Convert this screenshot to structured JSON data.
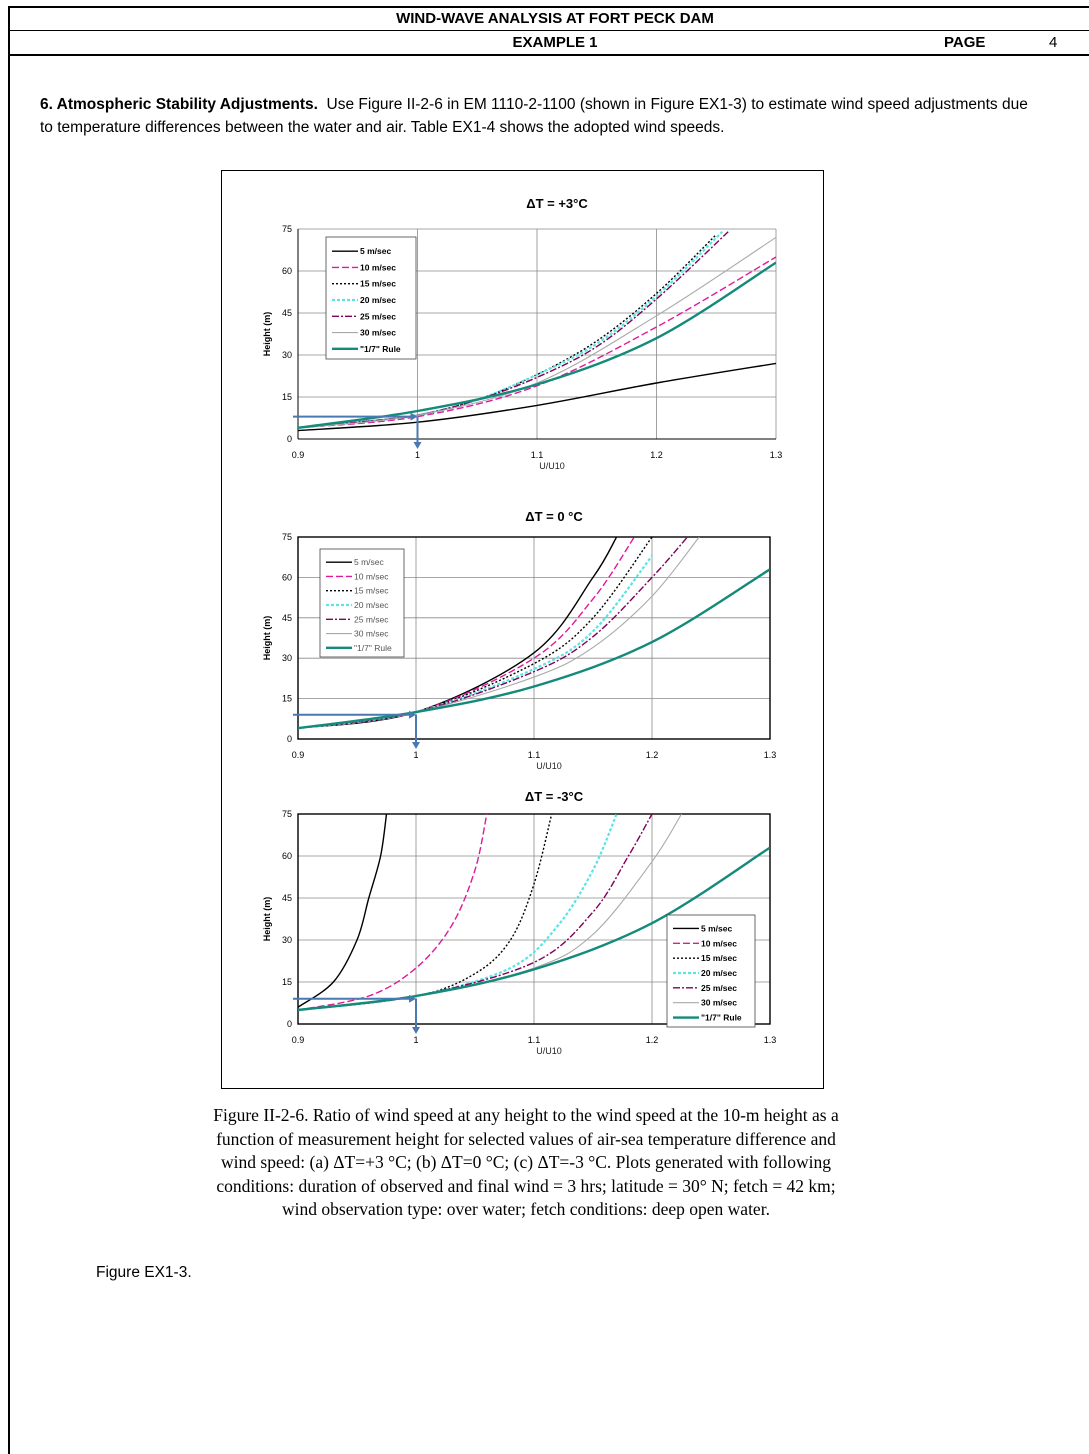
{
  "header": {
    "title": "WIND-WAVE ANALYSIS AT FORT PECK DAM",
    "subtitle": "EXAMPLE 1",
    "page_label": "PAGE",
    "page_number": "4"
  },
  "section": {
    "heading": "6. Atmospheric Stability Adjustments.",
    "body": "Use Figure II-2-6 in EM 1110-2-1100 (shown in Figure EX1-3)  to estimate wind speed adjustments due to temperature differences between the water and air. Table EX1-4 shows the adopted wind speeds."
  },
  "caption": "Figure II-2-6.  Ratio of wind speed at any height to the wind speed at the 10-m height as a function of measurement height for selected values of air-sea temperature difference and wind speed: (a) ΔT=+3 °C; (b) ΔT=0 °C; (c) ΔT=-3 °C.  Plots generated with following conditions: duration of observed and final wind = 3 hrs; latitude = 30° N; fetch = 42 km; wind observation type: over water; fetch conditions: deep open water.",
  "figure_label": "Figure EX1-3.",
  "colors": {
    "s5": "#000000",
    "s10": "#e0189a",
    "s15": "#000000",
    "s20": "#5de3e3",
    "s25": "#80005a",
    "s30": "#a9a9a9",
    "rule": "#138a7a",
    "arrow": "#4a78b0"
  },
  "chart_data": [
    {
      "type": "line",
      "title": "ΔT = +3°C",
      "xlabel": "U/U10",
      "ylabel": "Height (m)",
      "xlim": [
        0.9,
        1.3
      ],
      "ylim": [
        0,
        75
      ],
      "xticks": [
        "0.9",
        "1",
        "1.1",
        "1.2",
        "1.3"
      ],
      "yticks": [
        "0",
        "15",
        "30",
        "45",
        "60",
        "75"
      ],
      "legend_position": "top-left",
      "series": [
        {
          "name": "5 m/sec",
          "x": [
            0.9,
            1.0,
            1.1,
            1.2,
            1.3
          ],
          "y": [
            3,
            6,
            12,
            20,
            27
          ]
        },
        {
          "name": "10 m/sec",
          "x": [
            0.9,
            1.0,
            1.1,
            1.2,
            1.3
          ],
          "y": [
            4,
            8,
            19,
            40,
            65
          ]
        },
        {
          "name": "15 m/sec",
          "x": [
            0.9,
            0.95,
            1.0,
            1.05,
            1.1,
            1.15,
            1.2,
            1.25
          ],
          "y": [
            4,
            6,
            8.5,
            14,
            23,
            35,
            52,
            73
          ]
        },
        {
          "name": "20 m/sec",
          "x": [
            0.9,
            0.95,
            1.0,
            1.05,
            1.1,
            1.15,
            1.2,
            1.255
          ],
          "y": [
            4,
            6,
            8.5,
            14,
            23,
            34,
            51,
            74
          ]
        },
        {
          "name": "25 m/sec",
          "x": [
            0.9,
            0.95,
            1.0,
            1.05,
            1.1,
            1.15,
            1.2,
            1.26
          ],
          "y": [
            4,
            6,
            8.5,
            14,
            22,
            33,
            50,
            74
          ]
        },
        {
          "name": "30 m/sec",
          "x": [
            0.9,
            1.0,
            1.1,
            1.2,
            1.3
          ],
          "y": [
            4,
            8.5,
            20,
            44,
            72
          ]
        },
        {
          "name": "\"1/7\" Rule",
          "x": [
            0.9,
            1.0,
            1.1,
            1.2,
            1.3
          ],
          "y": [
            4,
            10,
            19.5,
            36,
            63
          ]
        }
      ]
    },
    {
      "type": "line",
      "title": "ΔT = 0 °C",
      "xlabel": "U/U10",
      "ylabel": "Height (m)",
      "xlim": [
        0.9,
        1.3
      ],
      "ylim": [
        0,
        75
      ],
      "xticks": [
        "0.9",
        "1",
        "1.1",
        "1.2",
        "1.3"
      ],
      "yticks": [
        "0",
        "15",
        "30",
        "45",
        "60",
        "75"
      ],
      "legend_position": "top-left",
      "series": [
        {
          "name": "5 m/sec",
          "x": [
            0.9,
            1.0,
            1.1,
            1.15,
            1.17
          ],
          "y": [
            4,
            10,
            32,
            60,
            75
          ]
        },
        {
          "name": "10 m/sec",
          "x": [
            0.9,
            1.0,
            1.1,
            1.15,
            1.185
          ],
          "y": [
            4,
            10,
            30,
            52,
            75
          ]
        },
        {
          "name": "15 m/sec",
          "x": [
            0.9,
            1.0,
            1.1,
            1.15,
            1.2
          ],
          "y": [
            4,
            10,
            28,
            45,
            75
          ]
        },
        {
          "name": "20 m/sec",
          "x": [
            0.9,
            1.0,
            1.1,
            1.15,
            1.2
          ],
          "y": [
            4,
            10,
            26,
            40,
            68
          ]
        },
        {
          "name": "25 m/sec",
          "x": [
            0.9,
            1.0,
            1.1,
            1.15,
            1.2,
            1.23
          ],
          "y": [
            4,
            10,
            25,
            38,
            60,
            75
          ]
        },
        {
          "name": "30 m/sec",
          "x": [
            0.9,
            1.0,
            1.1,
            1.15,
            1.2,
            1.24
          ],
          "y": [
            4,
            10,
            23,
            34,
            53,
            75
          ]
        },
        {
          "name": "\"1/7\" Rule",
          "x": [
            0.9,
            1.0,
            1.1,
            1.2,
            1.3
          ],
          "y": [
            4,
            10,
            19.5,
            36,
            63
          ]
        }
      ]
    },
    {
      "type": "line",
      "title": "ΔT = -3°C",
      "xlabel": "U/U10",
      "ylabel": "Height (m)",
      "xlim": [
        0.9,
        1.3
      ],
      "ylim": [
        0,
        75
      ],
      "xticks": [
        "0.9",
        "1",
        "1.1",
        "1.2",
        "1.3"
      ],
      "yticks": [
        "0",
        "15",
        "30",
        "45",
        "60",
        "75"
      ],
      "legend_position": "bottom-right",
      "series": [
        {
          "name": "5 m/sec",
          "x": [
            0.9,
            0.93,
            0.95,
            0.96,
            0.97,
            0.975
          ],
          "y": [
            6,
            15,
            30,
            45,
            60,
            75
          ]
        },
        {
          "name": "10 m/sec",
          "x": [
            0.9,
            0.96,
            1.0,
            1.03,
            1.05,
            1.06
          ],
          "y": [
            5,
            10,
            20,
            35,
            55,
            75
          ]
        },
        {
          "name": "15 m/sec",
          "x": [
            0.9,
            1.0,
            1.05,
            1.08,
            1.1,
            1.115
          ],
          "y": [
            5,
            10,
            18,
            30,
            50,
            75
          ]
        },
        {
          "name": "20 m/sec",
          "x": [
            0.9,
            1.0,
            1.08,
            1.12,
            1.15,
            1.17
          ],
          "y": [
            5,
            10,
            20,
            35,
            55,
            75
          ]
        },
        {
          "name": "25 m/sec",
          "x": [
            0.9,
            1.0,
            1.1,
            1.15,
            1.18,
            1.2
          ],
          "y": [
            5,
            10,
            22,
            40,
            60,
            75
          ]
        },
        {
          "name": "30 m/sec",
          "x": [
            0.9,
            1.0,
            1.1,
            1.15,
            1.2,
            1.225
          ],
          "y": [
            5,
            10,
            20,
            32,
            58,
            75
          ]
        },
        {
          "name": "\"1/7\" Rule",
          "x": [
            0.9,
            1.0,
            1.1,
            1.2,
            1.3
          ],
          "y": [
            5,
            10,
            19.5,
            36,
            63
          ]
        }
      ]
    }
  ]
}
